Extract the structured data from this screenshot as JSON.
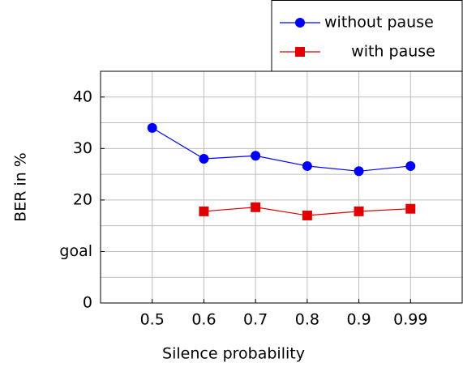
{
  "chart_data": {
    "type": "line",
    "xlabel": "Silence probability",
    "ylabel": "BER in %",
    "categories": [
      "0.5",
      "0.6",
      "0.7",
      "0.8",
      "0.9",
      "0.99"
    ],
    "series": [
      {
        "name": "without pause",
        "color": "#0000ff",
        "marker": "circle",
        "values": [
          34.0,
          28.0,
          28.6,
          26.6,
          25.6,
          26.6
        ]
      },
      {
        "name": "with pause",
        "color": "#e00000",
        "marker": "square",
        "values": [
          null,
          17.8,
          18.6,
          17.0,
          17.8,
          18.3
        ]
      }
    ],
    "ylim": [
      0,
      45
    ],
    "yticks": [
      0,
      {
        "value": 10,
        "label": "goal"
      },
      20,
      30,
      40
    ],
    "minor_yticks": [
      5,
      15,
      25,
      35
    ],
    "grid": true,
    "legend": "top-right"
  }
}
